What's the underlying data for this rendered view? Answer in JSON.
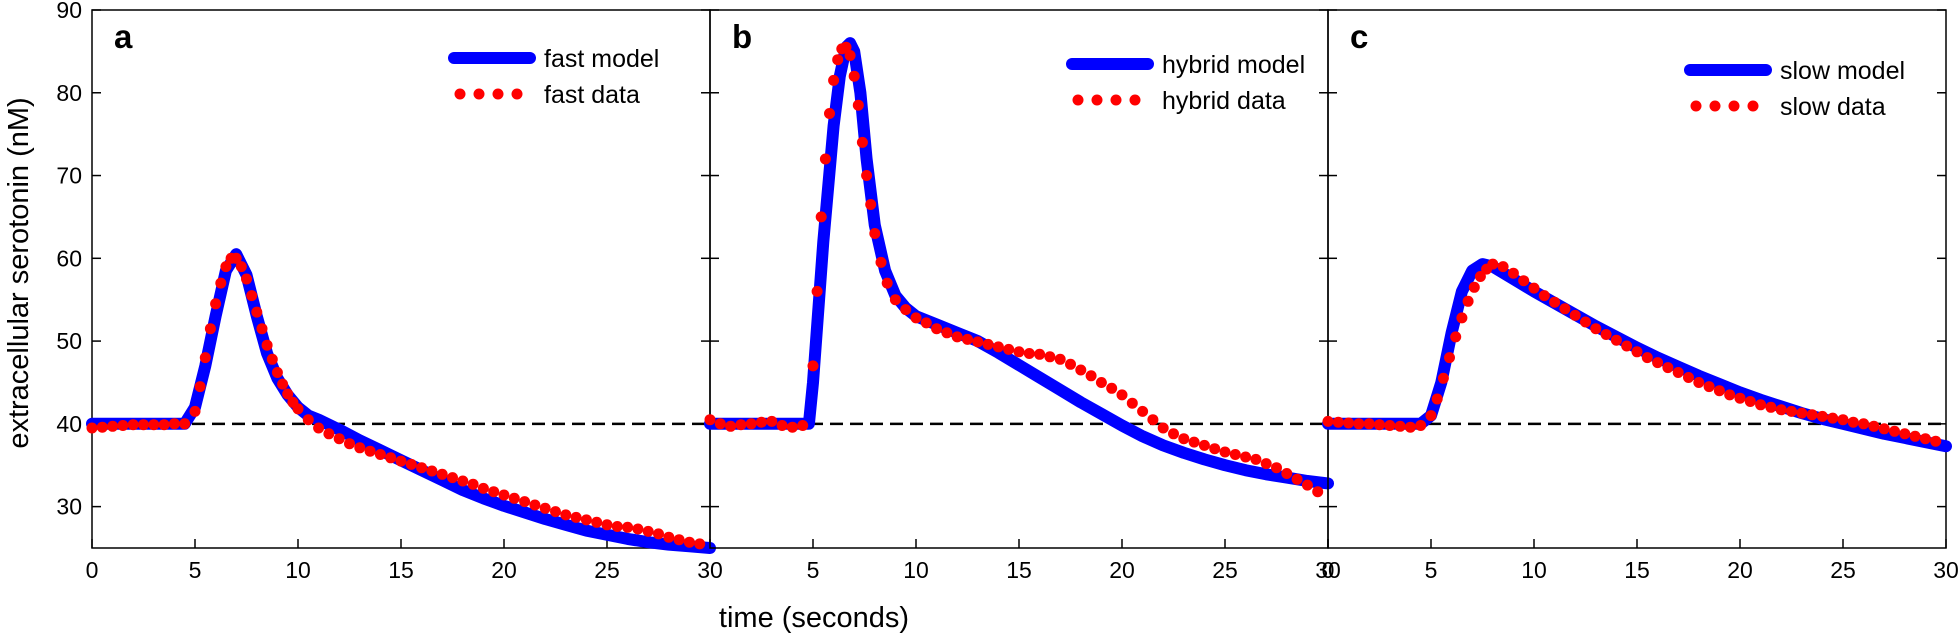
{
  "figure": {
    "ylabel": "extracellular serotonin (nM)",
    "xlabel": "time (seconds)"
  },
  "chart_data": [
    {
      "type": "line",
      "panel_label": "a",
      "xlim": [
        0,
        30
      ],
      "ylim": [
        25,
        90
      ],
      "xticks": [
        0,
        5,
        10,
        15,
        20,
        25,
        30
      ],
      "yticks": [
        30,
        40,
        50,
        60,
        70,
        80,
        90
      ],
      "baseline": 40,
      "legend_position": "top-right",
      "series": [
        {
          "name": "fast model",
          "style": "solid-thick",
          "color": "#0000ff",
          "x": [
            0,
            4.5,
            5,
            5.5,
            6,
            6.5,
            7,
            7.5,
            8,
            8.5,
            9,
            9.5,
            10,
            10.5,
            11,
            12,
            13,
            14,
            15,
            16,
            17,
            18,
            19,
            20,
            21,
            22,
            23,
            24,
            25,
            26,
            27,
            28,
            29,
            30
          ],
          "y": [
            40,
            40,
            42,
            47,
            53,
            58.5,
            60.5,
            58,
            53,
            48.5,
            45.5,
            43.5,
            42,
            41,
            40.5,
            39.3,
            38,
            36.8,
            35.6,
            34.4,
            33.2,
            32,
            31,
            30.1,
            29.3,
            28.5,
            27.8,
            27.1,
            26.6,
            26.1,
            25.7,
            25.4,
            25.2,
            25
          ]
        },
        {
          "name": "fast data",
          "style": "dots",
          "color": "#ff0000",
          "x": [
            0,
            0.5,
            1,
            1.5,
            2,
            2.5,
            3,
            3.5,
            4,
            4.5,
            5,
            5.25,
            5.5,
            5.75,
            6,
            6.25,
            6.5,
            6.75,
            7,
            7.25,
            7.5,
            7.75,
            8,
            8.25,
            8.5,
            8.75,
            9,
            9.25,
            9.5,
            9.75,
            10,
            10.5,
            11,
            11.5,
            12,
            12.5,
            13,
            13.5,
            14,
            14.5,
            15,
            15.5,
            16,
            16.5,
            17,
            17.5,
            18,
            18.5,
            19,
            19.5,
            20,
            20.5,
            21,
            21.5,
            22,
            22.5,
            23,
            23.5,
            24,
            24.5,
            25,
            25.5,
            26,
            26.5,
            27,
            27.5,
            28,
            28.5,
            29,
            29.5
          ],
          "y": [
            39.5,
            39.6,
            39.7,
            39.8,
            39.9,
            39.9,
            39.9,
            39.9,
            40,
            40,
            41.5,
            44.5,
            48,
            51.5,
            54.5,
            57,
            59,
            60,
            60,
            59,
            57.5,
            55.5,
            53.5,
            51.5,
            49.5,
            47.8,
            46.2,
            44.8,
            43.6,
            42.6,
            41.8,
            40.5,
            39.5,
            38.8,
            38.2,
            37.6,
            37.1,
            36.7,
            36.3,
            35.9,
            35.5,
            35.1,
            34.7,
            34.3,
            33.9,
            33.5,
            33.1,
            32.7,
            32.2,
            31.8,
            31.4,
            31,
            30.6,
            30.2,
            29.8,
            29.4,
            29,
            28.7,
            28.4,
            28.1,
            27.8,
            27.6,
            27.5,
            27.3,
            27,
            26.7,
            26.3,
            26,
            25.7,
            25.5
          ]
        }
      ]
    },
    {
      "type": "line",
      "panel_label": "b",
      "xlim": [
        0,
        30
      ],
      "ylim": [
        25,
        90
      ],
      "xticks": [
        5,
        10,
        15,
        20,
        25,
        30
      ],
      "yticks": [
        30,
        40,
        50,
        60,
        70,
        80,
        90
      ],
      "baseline": 40,
      "legend_position": "top-right",
      "series": [
        {
          "name": "hybrid model",
          "style": "solid-thick",
          "color": "#0000ff",
          "x": [
            0,
            4.5,
            4.8,
            5,
            5.5,
            6,
            6.3,
            6.6,
            6.8,
            7,
            7.3,
            7.6,
            8,
            8.5,
            9,
            9.5,
            10,
            11,
            12,
            13,
            14,
            15,
            16,
            17,
            18,
            19,
            20,
            21,
            22,
            23,
            24,
            25,
            26,
            27,
            28,
            29,
            30
          ],
          "y": [
            40,
            40,
            40,
            45,
            62,
            76,
            82,
            85.5,
            86,
            85,
            80,
            72,
            64,
            58.5,
            55.5,
            54,
            53,
            52,
            51,
            50,
            48.6,
            47.1,
            45.6,
            44.1,
            42.6,
            41.2,
            39.8,
            38.5,
            37.4,
            36.5,
            35.7,
            35,
            34.4,
            33.9,
            33.5,
            33.1,
            32.8
          ]
        },
        {
          "name": "hybrid data",
          "style": "dots",
          "color": "#ff0000",
          "x": [
            0,
            0.5,
            1,
            1.5,
            2,
            2.5,
            3,
            3.5,
            4,
            4.5,
            5,
            5.2,
            5.4,
            5.6,
            5.8,
            6,
            6.2,
            6.4,
            6.6,
            6.8,
            7,
            7.2,
            7.4,
            7.6,
            7.8,
            8,
            8.3,
            8.6,
            9,
            9.5,
            10,
            10.5,
            11,
            11.5,
            12,
            12.5,
            13,
            13.5,
            14,
            14.5,
            15,
            15.5,
            16,
            16.5,
            17,
            17.5,
            18,
            18.5,
            19,
            19.5,
            20,
            20.5,
            21,
            21.5,
            22,
            22.5,
            23,
            23.5,
            24,
            24.5,
            25,
            25.5,
            26,
            26.5,
            27,
            27.5,
            28,
            28.5,
            29,
            29.5
          ],
          "y": [
            40.5,
            40,
            39.7,
            39.9,
            40,
            40.2,
            40.3,
            39.8,
            39.6,
            39.8,
            47,
            56,
            65,
            72,
            77.5,
            81.5,
            84,
            85.3,
            85.5,
            84.5,
            82,
            78.5,
            74,
            70,
            66.5,
            63,
            59.5,
            57,
            55,
            53.8,
            52.8,
            52.2,
            51.5,
            51,
            50.5,
            50.2,
            49.9,
            49.6,
            49.3,
            49,
            48.7,
            48.5,
            48.4,
            48.1,
            47.8,
            47.2,
            46.5,
            45.8,
            45,
            44.3,
            43.5,
            42.5,
            41.5,
            40.5,
            39.5,
            38.8,
            38.2,
            37.8,
            37.4,
            37,
            36.6,
            36.3,
            36,
            35.7,
            35.2,
            34.7,
            34,
            33.3,
            32.6,
            31.8
          ]
        }
      ]
    },
    {
      "type": "line",
      "panel_label": "c",
      "xlim": [
        0,
        30
      ],
      "ylim": [
        25,
        90
      ],
      "xticks": [
        0,
        5,
        10,
        15,
        20,
        25,
        30
      ],
      "yticks": [
        30,
        40,
        50,
        60,
        70,
        80,
        90
      ],
      "baseline": 40,
      "legend_position": "top-right",
      "series": [
        {
          "name": "slow model",
          "style": "solid-thick",
          "color": "#0000ff",
          "x": [
            0,
            4.5,
            5,
            5.5,
            6,
            6.5,
            7,
            7.5,
            8,
            9,
            10,
            11,
            12,
            13,
            14,
            15,
            16,
            17,
            18,
            19,
            20,
            21,
            22,
            23,
            24,
            25,
            26,
            27,
            28,
            29,
            30
          ],
          "y": [
            40,
            40,
            41,
            45,
            51,
            56,
            58.5,
            59.3,
            59,
            57.5,
            56,
            54.6,
            53.2,
            51.8,
            50.5,
            49.2,
            48,
            46.9,
            45.8,
            44.8,
            43.8,
            42.9,
            42.1,
            41.3,
            40.6,
            40,
            39.4,
            38.8,
            38.3,
            37.8,
            37.3
          ]
        },
        {
          "name": "slow data",
          "style": "dots",
          "color": "#ff0000",
          "x": [
            0,
            0.5,
            1,
            1.5,
            2,
            2.5,
            3,
            3.5,
            4,
            4.5,
            5,
            5.3,
            5.6,
            5.9,
            6.2,
            6.5,
            6.8,
            7.1,
            7.4,
            7.7,
            8,
            8.5,
            9,
            9.5,
            10,
            10.5,
            11,
            11.5,
            12,
            12.5,
            13,
            13.5,
            14,
            14.5,
            15,
            15.5,
            16,
            16.5,
            17,
            17.5,
            18,
            18.5,
            19,
            19.5,
            20,
            20.5,
            21,
            21.5,
            22,
            22.5,
            23,
            23.5,
            24,
            24.5,
            25,
            25.5,
            26,
            26.5,
            27,
            27.5,
            28,
            28.5,
            29,
            29.5
          ],
          "y": [
            40.3,
            40.2,
            40.1,
            40,
            40,
            39.9,
            39.8,
            39.7,
            39.6,
            39.8,
            41,
            43,
            45.5,
            48,
            50.5,
            52.8,
            54.8,
            56.5,
            57.8,
            58.7,
            59.3,
            59,
            58.2,
            57.3,
            56.4,
            55.5,
            54.7,
            53.9,
            53.1,
            52.3,
            51.5,
            50.8,
            50.1,
            49.4,
            48.7,
            48,
            47.4,
            46.8,
            46.2,
            45.6,
            45,
            44.5,
            44,
            43.5,
            43.1,
            42.7,
            42.3,
            42,
            41.7,
            41.5,
            41.3,
            41.1,
            40.9,
            40.7,
            40.5,
            40.2,
            40,
            39.7,
            39.4,
            39.1,
            38.8,
            38.5,
            38.2,
            37.9
          ]
        }
      ]
    }
  ]
}
